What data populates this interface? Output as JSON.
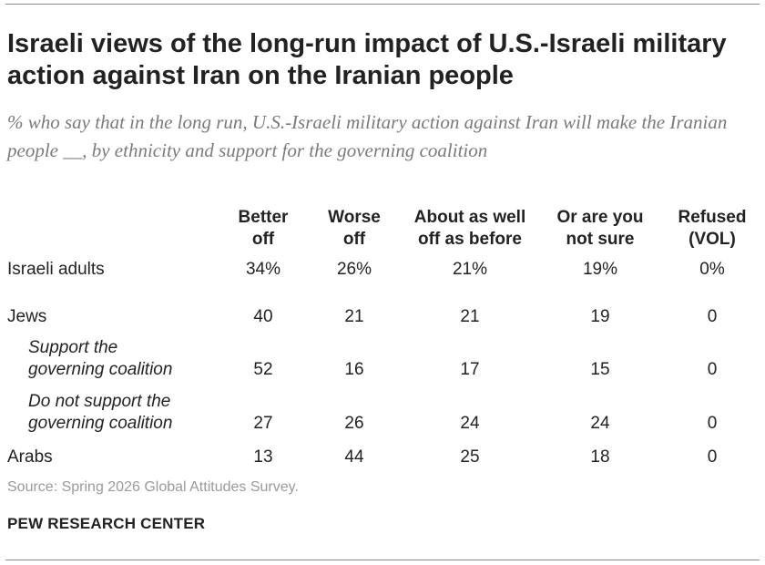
{
  "chart_data": {
    "type": "table",
    "title": "Israeli views of the long-run impact of U.S.-Israeli military action against Iran on the Iranian people",
    "subtitle": "% who say that in the long run, U.S.-Israeli military action against Iran will make the Iranian people __, by ethnicity and support for the governing coalition",
    "columns": [
      "Better\noff",
      "Worse\noff",
      "About as well\noff as before",
      "Or are you\nnot sure",
      "Refused\n(VOL)"
    ],
    "rows": [
      {
        "label": "Israeli adults",
        "values": [
          "34%",
          "26%",
          "21%",
          "19%",
          "0%"
        ]
      },
      {
        "label": "Jews",
        "values": [
          "40",
          "21",
          "21",
          "19",
          "0"
        ]
      },
      {
        "label": "Support the\ngoverning coalition",
        "values": [
          "52",
          "16",
          "17",
          "15",
          "0"
        ]
      },
      {
        "label": "Do not support the\ngoverning coalition",
        "values": [
          "27",
          "26",
          "24",
          "24",
          "0"
        ]
      },
      {
        "label": "Arabs",
        "values": [
          "13",
          "44",
          "25",
          "18",
          "0"
        ]
      }
    ],
    "source": "Source: Spring 2026 Global Attitudes Survey.",
    "credit": "PEW RESEARCH CENTER"
  }
}
